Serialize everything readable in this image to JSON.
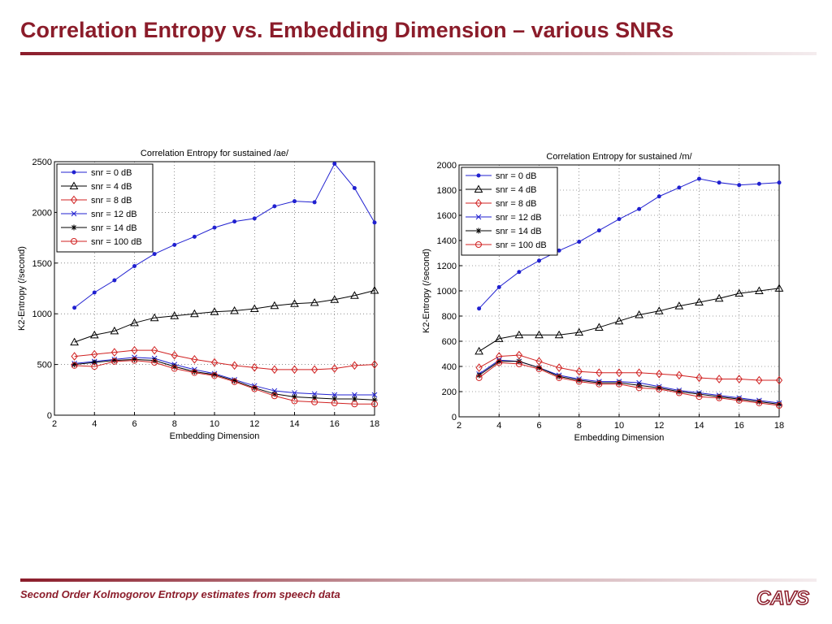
{
  "title": "Correlation Entropy vs. Embedding Dimension – various SNRs",
  "footer": "Second Order Kolmogorov Entropy estimates from speech data",
  "logo": "CAVS",
  "chart_data": [
    {
      "type": "line",
      "title": "Correlation Entropy for sustained /ae/",
      "xlabel": "Embedding Dimension",
      "ylabel": "K2-Entropy (/second)",
      "x": [
        3,
        4,
        5,
        6,
        7,
        8,
        9,
        10,
        11,
        12,
        13,
        14,
        15,
        16,
        17,
        18
      ],
      "xlim": [
        2,
        18
      ],
      "xticks": [
        2,
        4,
        6,
        8,
        10,
        12,
        14,
        16,
        18
      ],
      "ylim": [
        0,
        2500
      ],
      "yticks": [
        0,
        500,
        1000,
        1500,
        2000,
        2500
      ],
      "grid": true,
      "legend": "upper left",
      "series": [
        {
          "name": "snr = 0 dB",
          "color": "#2020d0",
          "marker": "dot",
          "values": [
            1060,
            1210,
            1330,
            1470,
            1590,
            1680,
            1760,
            1850,
            1910,
            1940,
            2060,
            2110,
            2100,
            2480,
            2240,
            1900
          ]
        },
        {
          "name": "snr = 4 dB",
          "color": "#000000",
          "marker": "triangle",
          "values": [
            720,
            790,
            830,
            910,
            960,
            980,
            1000,
            1020,
            1030,
            1050,
            1080,
            1100,
            1110,
            1140,
            1180,
            1230
          ]
        },
        {
          "name": "snr = 8 dB",
          "color": "#d02020",
          "marker": "diamond",
          "values": [
            580,
            600,
            620,
            640,
            640,
            590,
            550,
            520,
            490,
            470,
            450,
            450,
            450,
            460,
            490,
            500
          ]
        },
        {
          "name": "snr = 12 dB",
          "color": "#2020d0",
          "marker": "x",
          "values": [
            510,
            530,
            550,
            570,
            560,
            500,
            450,
            410,
            350,
            290,
            240,
            220,
            210,
            200,
            200,
            200
          ]
        },
        {
          "name": "snr = 14 dB",
          "color": "#000000",
          "marker": "star",
          "values": [
            500,
            520,
            540,
            550,
            540,
            480,
            430,
            400,
            340,
            270,
            210,
            180,
            170,
            160,
            160,
            150
          ]
        },
        {
          "name": "snr = 100 dB",
          "color": "#d02020",
          "marker": "circle",
          "values": [
            490,
            480,
            530,
            540,
            520,
            460,
            420,
            390,
            330,
            260,
            190,
            140,
            130,
            120,
            110,
            110
          ]
        }
      ]
    },
    {
      "type": "line",
      "title": "Correlation Entropy for sustained /m/",
      "xlabel": "Embedding Dimension",
      "ylabel": "K2-Entropy (/second)",
      "x": [
        3,
        4,
        5,
        6,
        7,
        8,
        9,
        10,
        11,
        12,
        13,
        14,
        15,
        16,
        17,
        18
      ],
      "xlim": [
        2,
        18
      ],
      "xticks": [
        2,
        4,
        6,
        8,
        10,
        12,
        14,
        16,
        18
      ],
      "ylim": [
        0,
        2000
      ],
      "yticks": [
        0,
        200,
        400,
        600,
        800,
        1000,
        1200,
        1400,
        1600,
        1800,
        2000
      ],
      "grid": true,
      "legend": "upper left",
      "series": [
        {
          "name": "snr = 0 dB",
          "color": "#2020d0",
          "marker": "dot",
          "values": [
            860,
            1030,
            1150,
            1240,
            1320,
            1390,
            1480,
            1570,
            1650,
            1750,
            1820,
            1890,
            1860,
            1840,
            1850,
            1860
          ]
        },
        {
          "name": "snr = 4 dB",
          "color": "#000000",
          "marker": "triangle",
          "values": [
            520,
            620,
            650,
            650,
            650,
            670,
            710,
            760,
            810,
            840,
            880,
            910,
            940,
            980,
            1000,
            1020
          ]
        },
        {
          "name": "snr = 8 dB",
          "color": "#d02020",
          "marker": "diamond",
          "values": [
            390,
            480,
            490,
            440,
            390,
            360,
            350,
            350,
            350,
            340,
            330,
            310,
            300,
            300,
            290,
            290
          ]
        },
        {
          "name": "snr = 12 dB",
          "color": "#2020d0",
          "marker": "x",
          "values": [
            340,
            450,
            440,
            390,
            330,
            300,
            280,
            280,
            270,
            240,
            210,
            190,
            170,
            150,
            130,
            110
          ]
        },
        {
          "name": "snr = 14 dB",
          "color": "#000000",
          "marker": "star",
          "values": [
            330,
            440,
            440,
            390,
            320,
            290,
            270,
            270,
            250,
            230,
            200,
            180,
            160,
            140,
            120,
            100
          ]
        },
        {
          "name": "snr = 100 dB",
          "color": "#d02020",
          "marker": "circle",
          "values": [
            310,
            430,
            420,
            380,
            310,
            280,
            260,
            260,
            230,
            220,
            190,
            160,
            150,
            130,
            110,
            90
          ]
        }
      ]
    }
  ]
}
